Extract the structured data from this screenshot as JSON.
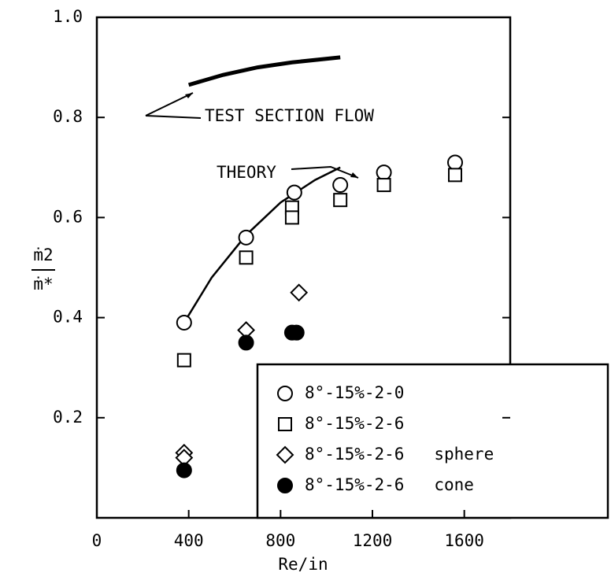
{
  "chart_data": {
    "type": "scatter",
    "xlabel": "Re/in",
    "ylabel_top": "ṁ2",
    "ylabel_bottom": "ṁ*",
    "xlim": [
      0,
      1800
    ],
    "xticks": [
      0,
      400,
      800,
      1200,
      1600
    ],
    "ylim": [
      0,
      1.0
    ],
    "yticks": [
      {
        "value": 0.2,
        "label": "0.2"
      },
      {
        "value": 0.4,
        "label": "0.4"
      },
      {
        "value": 0.6,
        "label": "0.6"
      },
      {
        "value": 0.8,
        "label": "0.8"
      },
      {
        "value": 1.0,
        "label": "1.0"
      }
    ],
    "series": [
      {
        "name": "8°-15%-2-0",
        "marker": "circle",
        "color": "#000000",
        "x": [
          380,
          650,
          860,
          1060,
          1250,
          1560
        ],
        "values": [
          0.39,
          0.56,
          0.65,
          0.665,
          0.69,
          0.71
        ]
      },
      {
        "name": "8°-15%-2-6",
        "marker": "square",
        "color": "#000000",
        "x": [
          380,
          650,
          850,
          850,
          1060,
          1250,
          1560
        ],
        "values": [
          0.315,
          0.52,
          0.62,
          0.6,
          0.635,
          0.665,
          0.685
        ]
      },
      {
        "name": "8°-15%-2-6   sphere",
        "marker": "diamond",
        "color": "#000000",
        "x": [
          380,
          380,
          650,
          880
        ],
        "values": [
          0.13,
          0.12,
          0.375,
          0.45
        ]
      },
      {
        "name": "8°-15%-2-6   cone",
        "marker": "filled-circle",
        "color": "#000000",
        "x": [
          380,
          650,
          850,
          870
        ],
        "values": [
          0.095,
          0.35,
          0.37,
          0.37
        ]
      }
    ],
    "curves": [
      {
        "name": "THEORY",
        "x": [
          380,
          500,
          650,
          800,
          950,
          1060
        ],
        "values": [
          0.39,
          0.48,
          0.565,
          0.63,
          0.675,
          0.7
        ]
      },
      {
        "name": "TEST SECTION FLOW",
        "x": [
          400,
          550,
          700,
          850,
          1060
        ],
        "values": [
          0.865,
          0.885,
          0.9,
          0.91,
          0.92
        ]
      }
    ]
  }
}
